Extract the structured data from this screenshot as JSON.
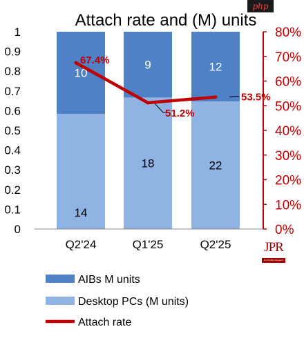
{
  "chart_data": {
    "type": "bar",
    "title": "Attach rate and (M) units",
    "categories": [
      "Q2'24",
      "Q1'25",
      "Q2'25"
    ],
    "stacked": true,
    "series": [
      {
        "name": "Desktop PCs (M units)",
        "values": [
          14,
          18,
          22
        ],
        "labels": [
          "14",
          "18",
          "22"
        ],
        "color": "#8fb3e3",
        "type": "bar"
      },
      {
        "name": "AIBs M units",
        "values": [
          10,
          9,
          12
        ],
        "labels": [
          "10",
          "9",
          "12"
        ],
        "color": "#4f81c7",
        "type": "bar"
      },
      {
        "name": "Attach rate",
        "values": [
          0.674,
          0.512,
          0.535
        ],
        "labels": [
          "67.4%",
          "51.2%",
          "53.5%"
        ],
        "color": "#c00000",
        "type": "line",
        "axis": "right"
      }
    ],
    "bar_scale": "100% stacked (left axis 0-1 share of AIBs + Desktop PCs)",
    "y_left": {
      "ylim": [
        0,
        1
      ],
      "ticks": [
        "0",
        "0.1",
        "0.2",
        "0.3",
        "0.4",
        "0.5",
        "0.6",
        "0.7",
        "0.8",
        "0.9",
        "1"
      ]
    },
    "y_right": {
      "ylim": [
        0,
        0.8
      ],
      "ticks": [
        "0%",
        "10%",
        "20%",
        "30%",
        "40%",
        "50%",
        "60%",
        "70%",
        "80%"
      ],
      "color": "#c00000"
    },
    "legend": {
      "position": "bottom",
      "entries": [
        "AIBs M units",
        "Desktop PCs (M units)",
        "Attach rate"
      ]
    },
    "grid": false
  },
  "watermark": {
    "text": "php",
    "logo": "JPR",
    "logo_sub": "Jon Peddie Research"
  }
}
